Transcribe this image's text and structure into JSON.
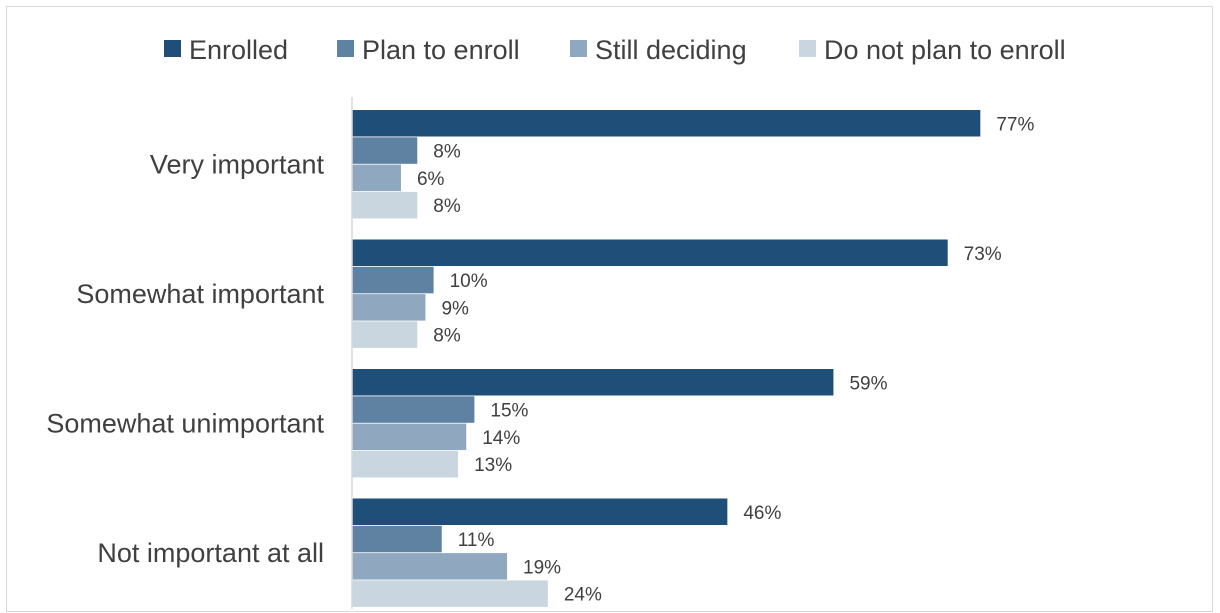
{
  "chart_data": {
    "type": "bar",
    "orientation": "horizontal",
    "title": "",
    "xlabel": "",
    "ylabel": "",
    "value_suffix": "%",
    "xlim": [
      0,
      80
    ],
    "grid": false,
    "legend_position": "top",
    "categories": [
      "Very important",
      "Somewhat important",
      "Somewhat unimportant",
      "Not important at all"
    ],
    "series": [
      {
        "name": "Enrolled",
        "color": "#1f4e79",
        "values": [
          77,
          73,
          59,
          46
        ]
      },
      {
        "name": "Plan to enroll",
        "color": "#5f82a2",
        "values": [
          8,
          10,
          15,
          11
        ]
      },
      {
        "name": "Still deciding",
        "color": "#8fa8c0",
        "values": [
          6,
          9,
          14,
          19
        ]
      },
      {
        "name": "Do not plan to enroll",
        "color": "#c9d5df",
        "values": [
          8,
          8,
          13,
          24
        ]
      }
    ]
  }
}
